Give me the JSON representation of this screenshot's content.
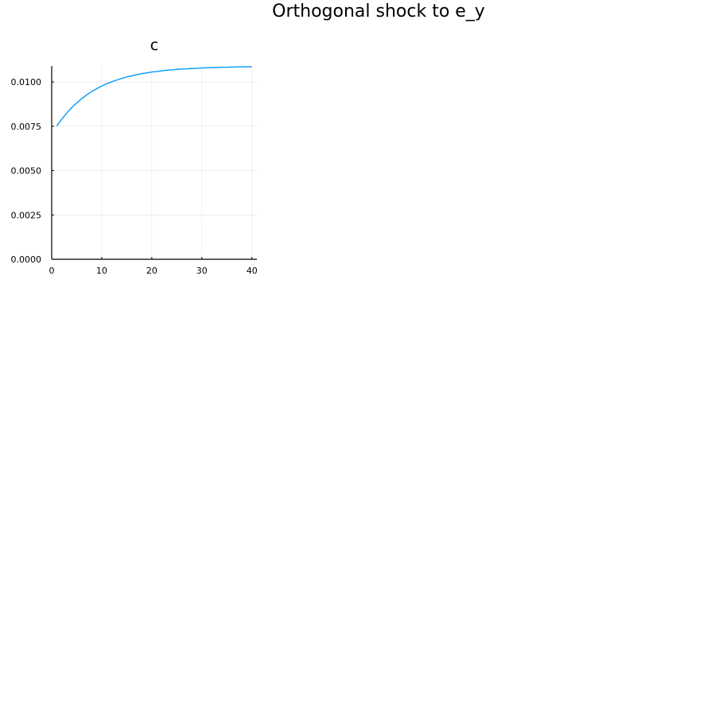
{
  "figure": {
    "title": "Orthogonal shock to e_y"
  },
  "chart_data": [
    {
      "type": "line",
      "title": "c",
      "xlabel": "",
      "ylabel": "",
      "xlim": [
        0,
        41
      ],
      "ylim": [
        0,
        0.0109
      ],
      "xticks": [
        0,
        10,
        20,
        30,
        40
      ],
      "xtick_labels": [
        "0",
        "10",
        "20",
        "30",
        "40"
      ],
      "yticks": [
        0,
        0.0025,
        0.005,
        0.0075,
        0.01
      ],
      "ytick_labels": [
        "0.0000",
        "0.0025",
        "0.0050",
        "0.0075",
        "0.0100"
      ],
      "grid": true,
      "legend": "none",
      "series": [
        {
          "color": "#009AFA",
          "x": [
            1,
            2,
            3,
            4,
            5,
            6,
            7,
            8,
            9,
            10,
            11,
            12,
            13,
            14,
            15,
            16,
            17,
            18,
            19,
            20,
            21,
            22,
            23,
            24,
            25,
            26,
            27,
            28,
            29,
            30,
            31,
            32,
            33,
            34,
            35,
            36,
            37,
            38,
            39,
            40
          ],
          "values": [
            0.00752,
            0.0079,
            0.00825,
            0.00855,
            0.00882,
            0.00906,
            0.00927,
            0.00946,
            0.00962,
            0.00977,
            0.0099,
            0.01001,
            0.01011,
            0.0102,
            0.01028,
            0.01035,
            0.01041,
            0.01047,
            0.01051,
            0.01056,
            0.01059,
            0.01063,
            0.01066,
            0.01068,
            0.01071,
            0.01073,
            0.01074,
            0.01076,
            0.01077,
            0.01079,
            0.0108,
            0.01081,
            0.01082,
            0.01083,
            0.01083,
            0.01084,
            0.01085,
            0.01085,
            0.01086,
            0.01086
          ]
        }
      ]
    }
  ]
}
